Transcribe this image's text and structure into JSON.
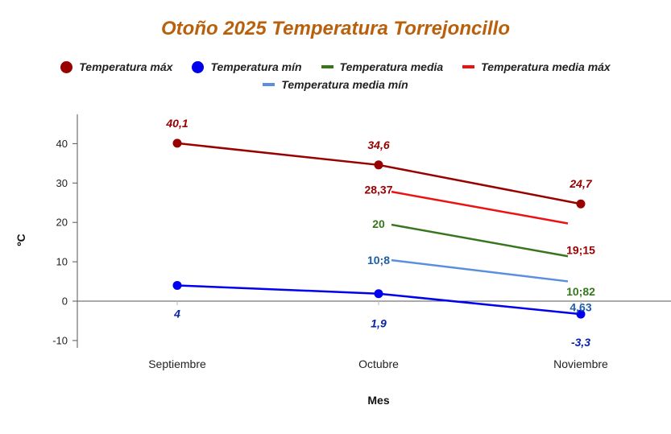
{
  "chart_data": {
    "type": "line",
    "title": "Otoño 2025 Temperatura Torrejoncillo",
    "xlabel": "Mes",
    "ylabel": "ºC",
    "ylim": [
      -13,
      48
    ],
    "yticks": [
      -10,
      0,
      10,
      20,
      30,
      40
    ],
    "categories": [
      "Septiembre",
      "Octubre",
      "Noviembre"
    ],
    "legend_position": "top",
    "series": [
      {
        "name": "Temperatura máx",
        "color": "#990000",
        "marker": "circle",
        "values": [
          40.1,
          34.6,
          24.7
        ],
        "labels": [
          "40,1",
          "34,6",
          "24,7"
        ]
      },
      {
        "name": "Temperatura mín",
        "color": "#0000ee",
        "marker": "circle",
        "values": [
          4,
          1.9,
          -3.3
        ],
        "labels": [
          "4",
          "1,9",
          "-3,3"
        ]
      },
      {
        "name": "Temperatura media",
        "color": "#38761d",
        "marker": "none",
        "values": [
          null,
          20,
          10.82
        ],
        "labels": [
          "",
          "20",
          "10;82"
        ]
      },
      {
        "name": "Temperatura media máx",
        "color": "#ee1111",
        "marker": "none",
        "values": [
          null,
          28.37,
          19.15
        ],
        "labels": [
          "",
          "28,37",
          "19;15"
        ]
      },
      {
        "name": "Temperatura media mín",
        "color": "#5b8fde",
        "marker": "none",
        "values": [
          null,
          10.8,
          4.63
        ],
        "labels": [
          "",
          "10;8",
          "4,63"
        ]
      }
    ]
  }
}
